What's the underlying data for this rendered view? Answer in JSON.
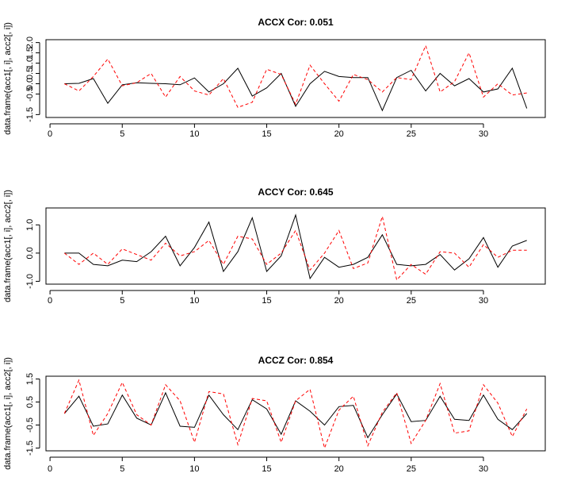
{
  "chart_data": [
    {
      "type": "line",
      "title": "ACCX Cor: 0.051",
      "ylabel": "data.frame(acc1[, i], acc2[, i])",
      "xlabel": "",
      "xlim": [
        1,
        33
      ],
      "ylim": [
        -1.5,
        2.0
      ],
      "xticks": [
        "0",
        "5",
        "10",
        "15",
        "20",
        "25",
        "30"
      ],
      "yticks": [
        "-1.5",
        "-0.5",
        "0.0",
        "0.5",
        "1.0",
        "1.5",
        "2.0"
      ],
      "grid": false,
      "series": [
        {
          "color": "#000000",
          "dash": "solid",
          "values": [
            0.0,
            0.02,
            0.25,
            -0.95,
            -0.05,
            0.05,
            0.02,
            0.0,
            -0.05,
            0.28,
            -0.4,
            0.0,
            0.75,
            -0.6,
            -0.2,
            0.5,
            -1.1,
            0.0,
            0.6,
            0.35,
            0.3,
            0.3,
            -1.3,
            0.3,
            0.65,
            -0.35,
            0.5,
            -0.1,
            0.25,
            -0.4,
            -0.25,
            0.75,
            -1.2
          ]
        },
        {
          "color": "#ff0000",
          "dash": "dashed",
          "values": [
            0.0,
            -0.35,
            0.35,
            1.2,
            -0.1,
            0.05,
            0.5,
            -0.65,
            0.35,
            -0.35,
            -0.55,
            0.25,
            -1.15,
            -0.9,
            0.7,
            0.45,
            -1.0,
            0.9,
            0.0,
            -0.85,
            0.45,
            0.2,
            -0.4,
            0.3,
            0.2,
            1.85,
            -0.4,
            0.1,
            1.5,
            -0.65,
            0.0,
            -0.55,
            -0.45
          ]
        }
      ]
    },
    {
      "type": "line",
      "title": "ACCY Cor: 0.645",
      "ylabel": "data.frame(acc1[, i], acc2[, i])",
      "xlabel": "",
      "xlim": [
        1,
        33
      ],
      "ylim": [
        -1.0,
        1.5
      ],
      "xticks": [
        "0",
        "5",
        "10",
        "15",
        "20",
        "25",
        "30"
      ],
      "yticks": [
        "-1.0",
        "0.0",
        "1.0"
      ],
      "grid": false,
      "series": [
        {
          "color": "#000000",
          "dash": "solid",
          "values": [
            0.0,
            0.0,
            -0.4,
            -0.45,
            -0.25,
            -0.3,
            0.05,
            0.6,
            -0.45,
            0.2,
            1.1,
            -0.65,
            0.05,
            1.25,
            -0.65,
            -0.1,
            1.35,
            -0.9,
            -0.15,
            -0.5,
            -0.4,
            -0.15,
            0.65,
            -0.4,
            -0.45,
            -0.4,
            -0.05,
            -0.6,
            -0.2,
            0.55,
            -0.5,
            0.25,
            0.45
          ]
        },
        {
          "color": "#ff0000",
          "dash": "dashed",
          "values": [
            0.0,
            -0.4,
            0.0,
            -0.4,
            0.15,
            -0.05,
            -0.25,
            0.35,
            -0.1,
            0.05,
            0.45,
            -0.4,
            0.6,
            0.5,
            -0.4,
            0.0,
            0.8,
            -0.6,
            0.0,
            0.8,
            -0.55,
            -0.35,
            1.3,
            -0.95,
            -0.4,
            -0.75,
            0.05,
            0.0,
            -0.5,
            0.3,
            -0.15,
            0.1,
            0.1
          ]
        }
      ]
    },
    {
      "type": "line",
      "title": "ACCZ Cor: 0.854",
      "ylabel": "data.frame(acc1[, i], acc2[, i])",
      "xlabel": "",
      "xlim": [
        1,
        33
      ],
      "ylim": [
        -1.5,
        1.5
      ],
      "xticks": [
        "0",
        "5",
        "10",
        "15",
        "20",
        "25",
        "30"
      ],
      "yticks": [
        "-1.5",
        "-0.5",
        "0.5",
        "1.5"
      ],
      "grid": false,
      "series": [
        {
          "color": "#000000",
          "dash": "solid",
          "values": [
            0.0,
            0.75,
            -0.55,
            -0.45,
            0.8,
            -0.2,
            -0.5,
            0.9,
            -0.55,
            -0.6,
            0.8,
            -0.05,
            -0.7,
            0.6,
            0.2,
            -0.9,
            0.55,
            0.1,
            -0.5,
            0.3,
            0.35,
            -1.05,
            -0.05,
            0.85,
            -0.35,
            -0.3,
            0.75,
            -0.25,
            -0.3,
            0.8,
            -0.25,
            -0.7,
            0.0
          ]
        },
        {
          "color": "#ff0000",
          "dash": "dashed",
          "values": [
            0.0,
            1.45,
            -0.95,
            0.0,
            1.35,
            -0.05,
            -0.5,
            1.25,
            0.55,
            -1.25,
            0.95,
            0.85,
            -1.35,
            0.65,
            0.55,
            -1.25,
            0.55,
            1.05,
            -1.5,
            0.15,
            0.75,
            -1.4,
            0.05,
            0.9,
            -1.3,
            -0.3,
            1.3,
            -0.85,
            -0.75,
            1.25,
            0.45,
            -1.0,
            0.2
          ]
        }
      ]
    }
  ]
}
